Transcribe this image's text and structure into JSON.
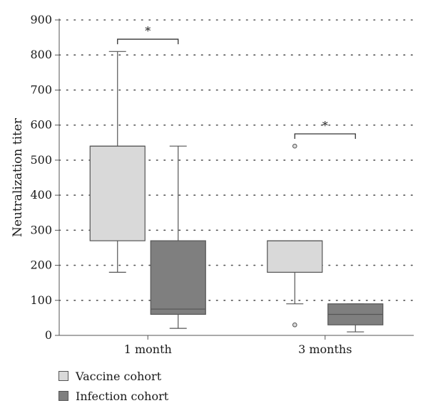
{
  "chart_data": {
    "type": "box",
    "ylabel": "Neutralization titer",
    "xlabel": "",
    "ylim": [
      0,
      900
    ],
    "yticks": [
      0,
      100,
      200,
      300,
      400,
      500,
      600,
      700,
      800,
      900
    ],
    "grid": "horizontal-dotted",
    "categories": [
      "1 month",
      "3 months"
    ],
    "series": [
      {
        "name": "Vaccine cohort",
        "color": "#d9d9d9",
        "boxes": [
          {
            "min": 180,
            "q1": 270,
            "median": 540,
            "q3": 540,
            "max": 810,
            "outliers": []
          },
          {
            "min": 90,
            "q1": 180,
            "median": 270,
            "q3": 270,
            "max": 270,
            "outliers": [
              540,
              30
            ]
          }
        ]
      },
      {
        "name": "Infection cohort",
        "color": "#7f7f7f",
        "boxes": [
          {
            "min": 20,
            "q1": 60,
            "median": 75,
            "q3": 270,
            "max": 540,
            "outliers": []
          },
          {
            "min": 10,
            "q1": 30,
            "median": 60,
            "q3": 90,
            "max": 90,
            "outliers": []
          }
        ]
      }
    ],
    "annotations": [
      {
        "category": "1 month",
        "text": "*"
      },
      {
        "category": "3 months",
        "text": "*"
      }
    ],
    "legend_position": "bottom-left"
  }
}
